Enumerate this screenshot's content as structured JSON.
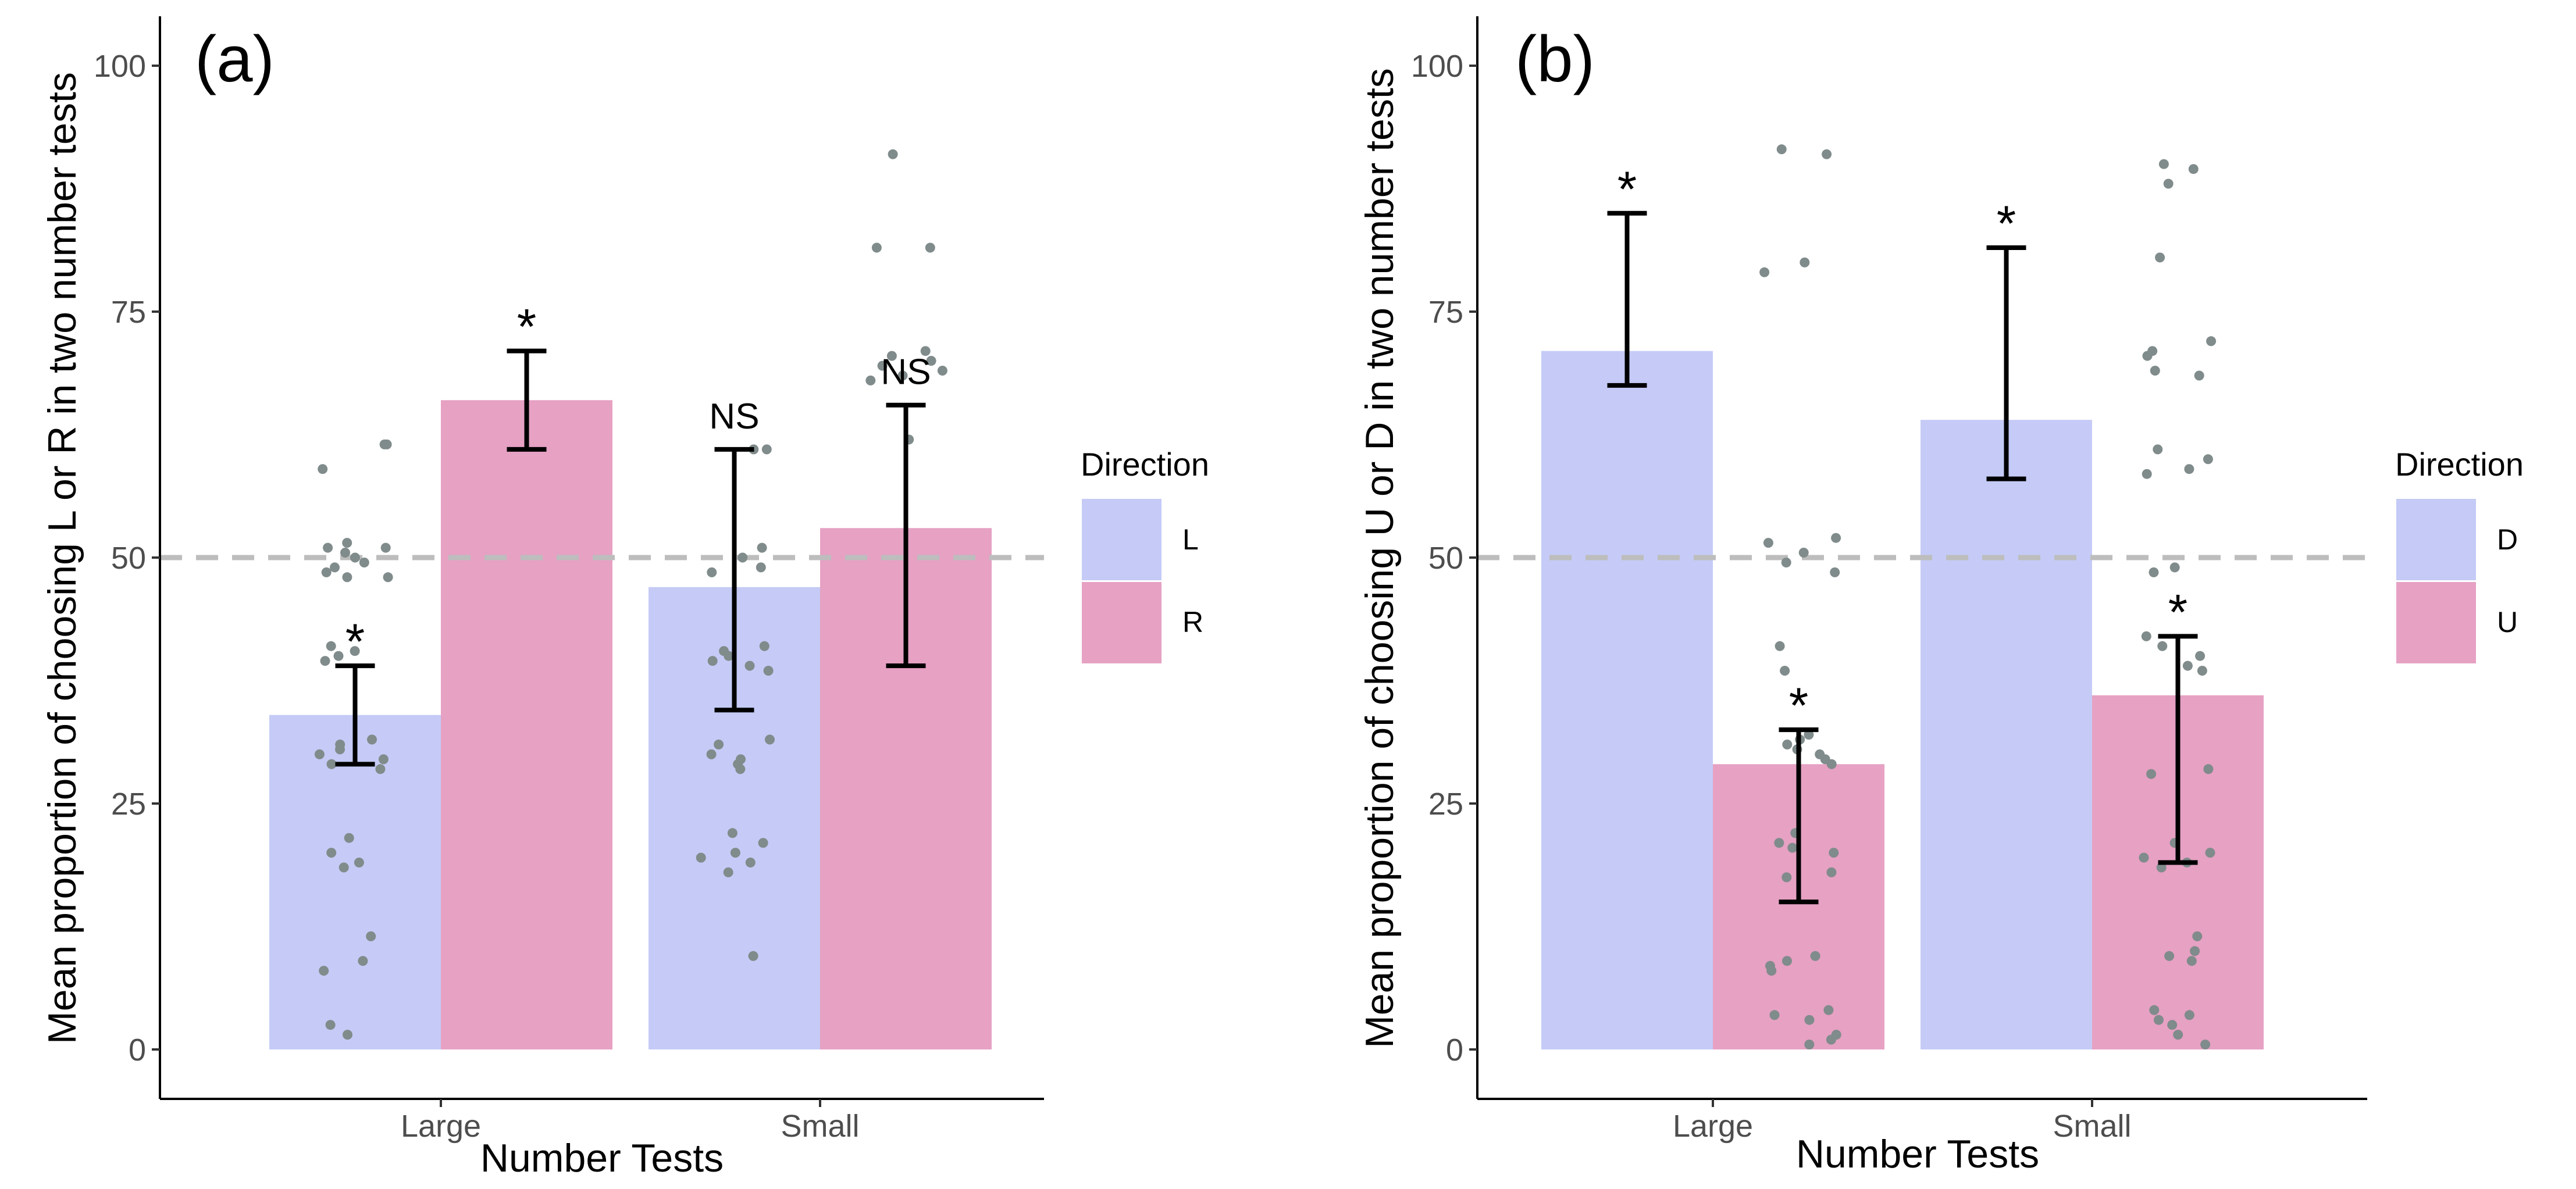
{
  "colors": {
    "bar_first": "#c5cbf6",
    "bar_second": "#e6a1c3",
    "reference_line": "#bdbdbd",
    "point": "#808b8b",
    "errorbar": "#000000"
  },
  "chart_data": [
    {
      "type": "bar",
      "panel_label": "(a)",
      "xlabel": "Number Tests",
      "ylabel": "Mean proportion of choosing L or R in two number tests",
      "categories": [
        "Large",
        "Small"
      ],
      "ylim": [
        0,
        100
      ],
      "yticks": [
        0,
        25,
        50,
        75,
        100
      ],
      "reference_line": 50,
      "legend": {
        "title": "Direction",
        "position": "right"
      },
      "series": [
        {
          "name": "L",
          "values": [
            34,
            47
          ],
          "error_low": [
            29,
            34.5
          ],
          "error_high": [
            39,
            61
          ],
          "significance": [
            "*",
            "NS"
          ],
          "points": [
            [
              61.5,
              61.5,
              59,
              51.5,
              51,
              51,
              50.5,
              50,
              49.5,
              49,
              48.5,
              48,
              48,
              41,
              40.5,
              40,
              39.5,
              31.5,
              31,
              30.5,
              30,
              29.5,
              29,
              28.5,
              21.5,
              20,
              19,
              18.5,
              11.5,
              9,
              8,
              2.5,
              1.5
            ],
            [
              61,
              61,
              51,
              50,
              49,
              48.5,
              41,
              40.5,
              40,
              39.5,
              39,
              38.5,
              31.5,
              31,
              30,
              29.5,
              29,
              28.5,
              22,
              21,
              20,
              19.5,
              19,
              18,
              9.5
            ]
          ]
        },
        {
          "name": "R",
          "values": [
            66,
            53
          ],
          "error_low": [
            61,
            39
          ],
          "error_high": [
            71,
            65.5
          ],
          "significance": [
            "*",
            "NS"
          ],
          "points": [
            [],
            [
              91,
              81.5,
              81.5,
              71,
              70.5,
              70,
              69.5,
              69,
              68.5,
              68,
              62
            ]
          ]
        }
      ]
    },
    {
      "type": "bar",
      "panel_label": "(b)",
      "xlabel": "Number Tests",
      "ylabel": "Mean proportion of choosing U or D in two number tests",
      "categories": [
        "Large",
        "Small"
      ],
      "ylim": [
        0,
        100
      ],
      "yticks": [
        0,
        25,
        50,
        75,
        100
      ],
      "reference_line": 50,
      "legend": {
        "title": "Direction",
        "position": "right"
      },
      "series": [
        {
          "name": "D",
          "values": [
            71,
            64
          ],
          "error_low": [
            67.5,
            58
          ],
          "error_high": [
            85,
            81.5
          ],
          "significance": [
            "*",
            "*"
          ],
          "points": [
            [],
            []
          ]
        },
        {
          "name": "U",
          "values": [
            29,
            36
          ],
          "error_low": [
            15,
            19
          ],
          "error_high": [
            32.5,
            42
          ],
          "significance": [
            "*",
            "*"
          ],
          "points": [
            [
              91.5,
              91,
              80,
              79,
              52,
              51.5,
              50.5,
              49.5,
              48.5,
              41,
              38.5,
              32,
              31.5,
              31,
              30.5,
              30,
              29.5,
              29,
              22,
              21,
              20.5,
              20,
              18,
              17.5,
              9.5,
              9,
              8.5,
              8,
              4,
              3.5,
              3,
              1.5,
              1,
              0.5
            ],
            [
              90,
              89.5,
              88,
              80.5,
              72,
              71,
              70.5,
              69,
              68.5,
              61,
              60,
              59,
              58.5,
              49,
              48.5,
              42,
              41,
              40,
              39,
              38.5,
              28.5,
              28,
              21,
              20,
              19.5,
              19,
              18.5,
              11.5,
              10,
              9.5,
              9,
              4,
              3.5,
              3,
              2.5,
              1.5,
              0.5
            ]
          ]
        }
      ]
    }
  ]
}
